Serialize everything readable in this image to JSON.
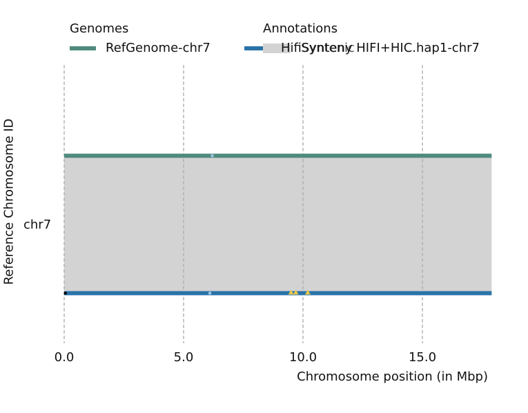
{
  "chart_data": {
    "type": "synteny",
    "xlabel": "Chromosome position (in Mbp)",
    "ylabel": "Reference Chromosome ID",
    "xlim": [
      0,
      17.9
    ],
    "xticks": [
      0.0,
      5.0,
      10.0,
      15.0
    ],
    "xtick_labels": [
      "0.0",
      "5.0",
      "10.0",
      "15.0"
    ],
    "yticks": [
      "chr7"
    ],
    "grid": "vertical dashed",
    "legend": {
      "genomes_title": "Genomes",
      "annotations_title": "Annotations",
      "genomes": [
        {
          "label": "RefGenome-chr7",
          "color": "#4f8a7e"
        },
        {
          "label": "HifiSynteny HIFI+HIC.hap1-chr7",
          "color": "#2a73a8"
        }
      ],
      "annotations": [
        {
          "label": "Syntenic",
          "color": "#d3d3d3"
        }
      ]
    },
    "tracks": [
      {
        "name": "RefGenome-chr7",
        "start": 0,
        "end": 17.9,
        "color": "#4f8a7e"
      },
      {
        "name": "HifiSynteny HIFI+HIC.hap1-chr7",
        "start": 0,
        "end": 17.9,
        "color": "#2a73a8"
      }
    ],
    "syntenic_regions": [
      {
        "ref_start": 0,
        "ref_end": 17.9,
        "query_start": 0,
        "query_end": 17.9,
        "color": "#d3d3d3"
      }
    ],
    "markers": [
      {
        "track": 0,
        "position": 6.2,
        "shape": "square",
        "color": "#9ec4e8"
      },
      {
        "track": 1,
        "position": 6.1,
        "shape": "square",
        "color": "#9ec4e8"
      },
      {
        "track": 1,
        "position": 0.05,
        "shape": "square",
        "color": "#000000"
      },
      {
        "track": 1,
        "position": 9.5,
        "shape": "triangle",
        "color": "#e8c94a"
      },
      {
        "track": 1,
        "position": 9.7,
        "shape": "triangle",
        "color": "#e8c94a"
      },
      {
        "track": 1,
        "position": 10.2,
        "shape": "triangle",
        "color": "#e8c94a"
      }
    ]
  }
}
